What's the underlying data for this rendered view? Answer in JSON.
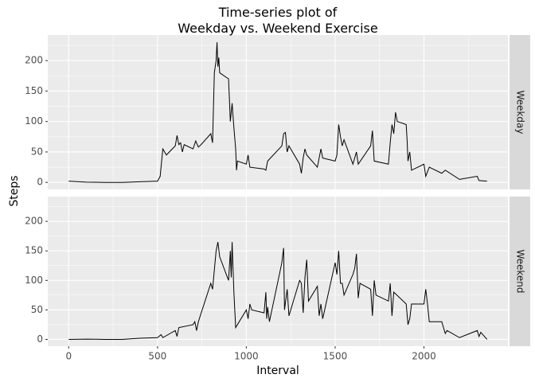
{
  "chart_data": {
    "type": "line",
    "title": "Time-series plot of\nWeekday vs. Weekend Exercise",
    "x_label": "Interval",
    "y_label": "Steps",
    "xlim": [
      -117.75,
      2472.75
    ],
    "xticks": [
      0,
      500,
      1000,
      1500,
      2000
    ],
    "x_minor_ticks": [
      250,
      750,
      1250,
      1750,
      2250
    ],
    "ylim": [
      -11.5,
      242
    ],
    "yticks": [
      0,
      50,
      100,
      150,
      200
    ],
    "y_minor_ticks": [
      25,
      75,
      125,
      175,
      225
    ],
    "grid": true,
    "series": [
      {
        "name": "Weekday",
        "color": "#000000",
        "x": [
          0,
          100,
          200,
          300,
          400,
          500,
          515,
          530,
          550,
          600,
          610,
          620,
          630,
          640,
          650,
          700,
          715,
          730,
          745,
          800,
          810,
          820,
          830,
          835,
          840,
          845,
          850,
          900,
          910,
          920,
          930,
          940,
          945,
          950,
          1000,
          1010,
          1020,
          1100,
          1110,
          1120,
          1200,
          1210,
          1220,
          1230,
          1240,
          1300,
          1310,
          1320,
          1330,
          1340,
          1400,
          1410,
          1420,
          1430,
          1500,
          1510,
          1520,
          1530,
          1540,
          1550,
          1600,
          1610,
          1620,
          1630,
          1700,
          1710,
          1720,
          1800,
          1810,
          1820,
          1830,
          1840,
          1850,
          1900,
          1905,
          1910,
          1920,
          1930,
          2000,
          2010,
          2030,
          2100,
          2120,
          2200,
          2300,
          2310,
          2355
        ],
        "values": [
          2,
          0.5,
          0,
          0,
          1,
          2,
          10,
          55,
          45,
          60,
          77,
          62,
          65,
          50,
          62,
          55,
          68,
          58,
          62,
          80,
          65,
          180,
          200,
          230,
          190,
          205,
          180,
          170,
          100,
          130,
          90,
          55,
          20,
          35,
          30,
          45,
          25,
          22,
          20,
          35,
          60,
          80,
          82,
          50,
          60,
          30,
          15,
          40,
          55,
          45,
          25,
          40,
          55,
          40,
          35,
          45,
          95,
          75,
          60,
          70,
          30,
          40,
          50,
          30,
          60,
          85,
          35,
          30,
          65,
          95,
          80,
          115,
          100,
          95,
          70,
          35,
          50,
          20,
          30,
          10,
          25,
          15,
          20,
          5,
          10,
          3,
          2
        ]
      },
      {
        "name": "Weekend",
        "color": "#000000",
        "x": [
          0,
          100,
          200,
          300,
          400,
          500,
          520,
          530,
          600,
          610,
          620,
          700,
          710,
          720,
          730,
          800,
          810,
          830,
          840,
          850,
          900,
          910,
          915,
          920,
          930,
          935,
          940,
          950,
          1000,
          1010,
          1020,
          1030,
          1100,
          1110,
          1115,
          1120,
          1130,
          1200,
          1210,
          1215,
          1230,
          1240,
          1300,
          1310,
          1320,
          1330,
          1340,
          1350,
          1400,
          1410,
          1420,
          1430,
          1500,
          1510,
          1520,
          1530,
          1540,
          1550,
          1600,
          1610,
          1620,
          1630,
          1640,
          1700,
          1710,
          1720,
          1730,
          1800,
          1810,
          1820,
          1830,
          1900,
          1910,
          1920,
          1930,
          2000,
          2010,
          2020,
          2030,
          2100,
          2110,
          2120,
          2130,
          2200,
          2300,
          2310,
          2320,
          2355
        ],
        "values": [
          0,
          0.5,
          0,
          0,
          2,
          3,
          8,
          3,
          15,
          5,
          20,
          25,
          30,
          15,
          30,
          95,
          85,
          150,
          165,
          140,
          100,
          150,
          105,
          165,
          80,
          50,
          20,
          25,
          50,
          35,
          60,
          50,
          45,
          80,
          35,
          55,
          30,
          130,
          155,
          50,
          85,
          40,
          100,
          95,
          45,
          105,
          135,
          65,
          90,
          40,
          60,
          35,
          130,
          110,
          150,
          95,
          95,
          75,
          110,
          120,
          145,
          70,
          95,
          85,
          40,
          100,
          75,
          65,
          95,
          40,
          80,
          60,
          25,
          35,
          60,
          60,
          85,
          60,
          30,
          30,
          20,
          10,
          15,
          3,
          15,
          5,
          12,
          0
        ]
      }
    ]
  }
}
